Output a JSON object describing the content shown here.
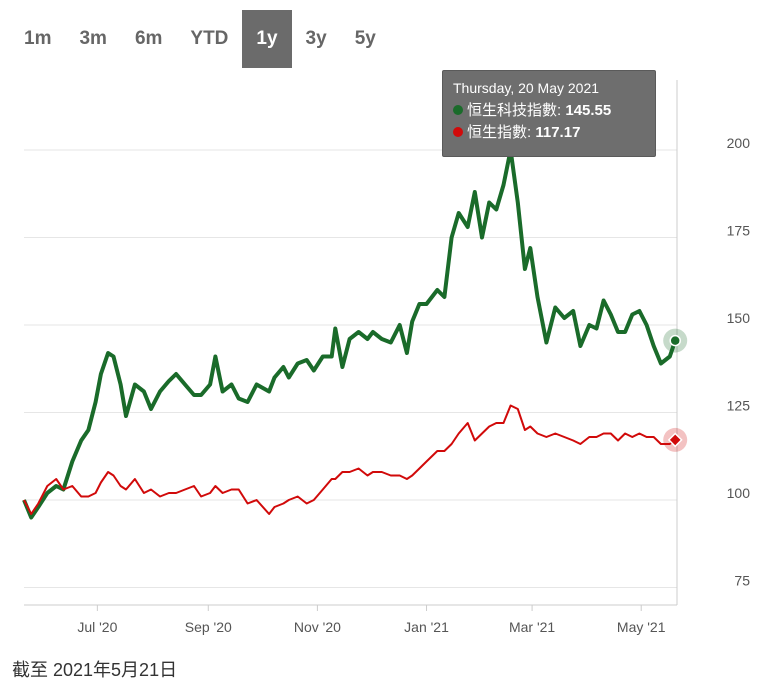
{
  "range_selector": {
    "buttons": [
      "1m",
      "3m",
      "6m",
      "YTD",
      "1y",
      "3y",
      "5y"
    ],
    "active": "1y"
  },
  "tooltip": {
    "date": "Thursday, 20 May 2021",
    "rows": [
      {
        "name": "恒生科技指數",
        "value": "145.55",
        "color": "#1a6b2a"
      },
      {
        "name": "恒生指數",
        "value": "117.17",
        "color": "#d10a0a"
      }
    ]
  },
  "footer": {
    "note": "截至 2021年5月21日"
  },
  "colors": {
    "series1": "#1a6b2a",
    "series2": "#d10a0a",
    "grid": "#e6e6e6",
    "axis": "#cccccc"
  },
  "chart_data": {
    "type": "line",
    "title": "",
    "xlabel": "",
    "ylabel": "",
    "x_ticks": [
      "Jul '20",
      "Sep '20",
      "Nov '20",
      "Jan '21",
      "Mar '21",
      "May '21"
    ],
    "y_ticks": [
      75,
      100,
      125,
      150,
      175,
      200
    ],
    "ylim": [
      70,
      220
    ],
    "xlim": [
      "2020-05-21",
      "2021-05-21"
    ],
    "grid": true,
    "legend": "none",
    "series": [
      {
        "name": "恒生科技指數",
        "points": [
          [
            "2020-05-21",
            100
          ],
          [
            "2020-05-25",
            95
          ],
          [
            "2020-05-29",
            98
          ],
          [
            "2020-06-03",
            102
          ],
          [
            "2020-06-08",
            104
          ],
          [
            "2020-06-12",
            103
          ],
          [
            "2020-06-17",
            111
          ],
          [
            "2020-06-22",
            117
          ],
          [
            "2020-06-26",
            120
          ],
          [
            "2020-06-30",
            128
          ],
          [
            "2020-07-03",
            136
          ],
          [
            "2020-07-07",
            142
          ],
          [
            "2020-07-10",
            141
          ],
          [
            "2020-07-14",
            133
          ],
          [
            "2020-07-17",
            124
          ],
          [
            "2020-07-22",
            133
          ],
          [
            "2020-07-27",
            131
          ],
          [
            "2020-07-31",
            126
          ],
          [
            "2020-08-05",
            131
          ],
          [
            "2020-08-10",
            134
          ],
          [
            "2020-08-14",
            136
          ],
          [
            "2020-08-19",
            133
          ],
          [
            "2020-08-24",
            130
          ],
          [
            "2020-08-28",
            130
          ],
          [
            "2020-09-02",
            133
          ],
          [
            "2020-09-05",
            141
          ],
          [
            "2020-09-09",
            131
          ],
          [
            "2020-09-14",
            133
          ],
          [
            "2020-09-18",
            129
          ],
          [
            "2020-09-23",
            128
          ],
          [
            "2020-09-28",
            133
          ],
          [
            "2020-10-05",
            131
          ],
          [
            "2020-10-08",
            135
          ],
          [
            "2020-10-13",
            138
          ],
          [
            "2020-10-16",
            135
          ],
          [
            "2020-10-21",
            139
          ],
          [
            "2020-10-26",
            140
          ],
          [
            "2020-10-30",
            137
          ],
          [
            "2020-11-04",
            141
          ],
          [
            "2020-11-09",
            141
          ],
          [
            "2020-11-11",
            149
          ],
          [
            "2020-11-15",
            138
          ],
          [
            "2020-11-19",
            146
          ],
          [
            "2020-11-24",
            148
          ],
          [
            "2020-11-29",
            146
          ],
          [
            "2020-12-02",
            148
          ],
          [
            "2020-12-07",
            146
          ],
          [
            "2020-12-12",
            145
          ],
          [
            "2020-12-17",
            150
          ],
          [
            "2020-12-21",
            142
          ],
          [
            "2020-12-24",
            151
          ],
          [
            "2020-12-28",
            156
          ],
          [
            "2021-01-01",
            156
          ],
          [
            "2021-01-07",
            160
          ],
          [
            "2021-01-11",
            158
          ],
          [
            "2021-01-15",
            175
          ],
          [
            "2021-01-19",
            182
          ],
          [
            "2021-01-24",
            178
          ],
          [
            "2021-01-28",
            188
          ],
          [
            "2021-02-01",
            175
          ],
          [
            "2021-02-05",
            185
          ],
          [
            "2021-02-09",
            183
          ],
          [
            "2021-02-13",
            190
          ],
          [
            "2021-02-17",
            200
          ],
          [
            "2021-02-21",
            185
          ],
          [
            "2021-02-25",
            166
          ],
          [
            "2021-02-28",
            172
          ],
          [
            "2021-03-04",
            158
          ],
          [
            "2021-03-09",
            145
          ],
          [
            "2021-03-14",
            155
          ],
          [
            "2021-03-19",
            152
          ],
          [
            "2021-03-24",
            154
          ],
          [
            "2021-03-28",
            144
          ],
          [
            "2021-04-02",
            150
          ],
          [
            "2021-04-06",
            149
          ],
          [
            "2021-04-10",
            157
          ],
          [
            "2021-04-14",
            153
          ],
          [
            "2021-04-18",
            148
          ],
          [
            "2021-04-22",
            148
          ],
          [
            "2021-04-26",
            153
          ],
          [
            "2021-04-30",
            154
          ],
          [
            "2021-05-04",
            150
          ],
          [
            "2021-05-08",
            144
          ],
          [
            "2021-05-12",
            139
          ],
          [
            "2021-05-17",
            141
          ],
          [
            "2021-05-20",
            145.55
          ]
        ]
      },
      {
        "name": "恒生指數",
        "points": [
          [
            "2020-05-21",
            100
          ],
          [
            "2020-05-25",
            96
          ],
          [
            "2020-05-29",
            99
          ],
          [
            "2020-06-03",
            104
          ],
          [
            "2020-06-08",
            106
          ],
          [
            "2020-06-12",
            103
          ],
          [
            "2020-06-17",
            104
          ],
          [
            "2020-06-22",
            101
          ],
          [
            "2020-06-26",
            101
          ],
          [
            "2020-06-30",
            102
          ],
          [
            "2020-07-03",
            105
          ],
          [
            "2020-07-07",
            108
          ],
          [
            "2020-07-10",
            107
          ],
          [
            "2020-07-14",
            104
          ],
          [
            "2020-07-17",
            103
          ],
          [
            "2020-07-22",
            106
          ],
          [
            "2020-07-27",
            102
          ],
          [
            "2020-07-31",
            103
          ],
          [
            "2020-08-05",
            101
          ],
          [
            "2020-08-10",
            102
          ],
          [
            "2020-08-14",
            102
          ],
          [
            "2020-08-19",
            103
          ],
          [
            "2020-08-24",
            104
          ],
          [
            "2020-08-28",
            101
          ],
          [
            "2020-09-02",
            102
          ],
          [
            "2020-09-05",
            104
          ],
          [
            "2020-09-09",
            102
          ],
          [
            "2020-09-14",
            103
          ],
          [
            "2020-09-18",
            103
          ],
          [
            "2020-09-23",
            99
          ],
          [
            "2020-09-28",
            100
          ],
          [
            "2020-10-05",
            96
          ],
          [
            "2020-10-08",
            98
          ],
          [
            "2020-10-13",
            99
          ],
          [
            "2020-10-16",
            100
          ],
          [
            "2020-10-21",
            101
          ],
          [
            "2020-10-26",
            99
          ],
          [
            "2020-10-30",
            100
          ],
          [
            "2020-11-04",
            103
          ],
          [
            "2020-11-09",
            106
          ],
          [
            "2020-11-11",
            106
          ],
          [
            "2020-11-15",
            108
          ],
          [
            "2020-11-19",
            108
          ],
          [
            "2020-11-24",
            109
          ],
          [
            "2020-11-29",
            107
          ],
          [
            "2020-12-02",
            108
          ],
          [
            "2020-12-07",
            108
          ],
          [
            "2020-12-12",
            107
          ],
          [
            "2020-12-17",
            107
          ],
          [
            "2020-12-21",
            106
          ],
          [
            "2020-12-24",
            107
          ],
          [
            "2020-12-28",
            109
          ],
          [
            "2021-01-01",
            111
          ],
          [
            "2021-01-07",
            114
          ],
          [
            "2021-01-11",
            114
          ],
          [
            "2021-01-15",
            116
          ],
          [
            "2021-01-19",
            119
          ],
          [
            "2021-01-24",
            122
          ],
          [
            "2021-01-28",
            117
          ],
          [
            "2021-02-01",
            119
          ],
          [
            "2021-02-05",
            121
          ],
          [
            "2021-02-09",
            122
          ],
          [
            "2021-02-13",
            122
          ],
          [
            "2021-02-17",
            127
          ],
          [
            "2021-02-21",
            126
          ],
          [
            "2021-02-25",
            120
          ],
          [
            "2021-02-28",
            121
          ],
          [
            "2021-03-04",
            119
          ],
          [
            "2021-03-09",
            118
          ],
          [
            "2021-03-14",
            119
          ],
          [
            "2021-03-19",
            118
          ],
          [
            "2021-03-24",
            117
          ],
          [
            "2021-03-28",
            116
          ],
          [
            "2021-04-02",
            118
          ],
          [
            "2021-04-06",
            118
          ],
          [
            "2021-04-10",
            119
          ],
          [
            "2021-04-14",
            119
          ],
          [
            "2021-04-18",
            117
          ],
          [
            "2021-04-22",
            119
          ],
          [
            "2021-04-26",
            118
          ],
          [
            "2021-04-30",
            119
          ],
          [
            "2021-05-04",
            118
          ],
          [
            "2021-05-08",
            118
          ],
          [
            "2021-05-12",
            116
          ],
          [
            "2021-05-17",
            116
          ],
          [
            "2021-05-20",
            117.17
          ]
        ]
      }
    ]
  }
}
